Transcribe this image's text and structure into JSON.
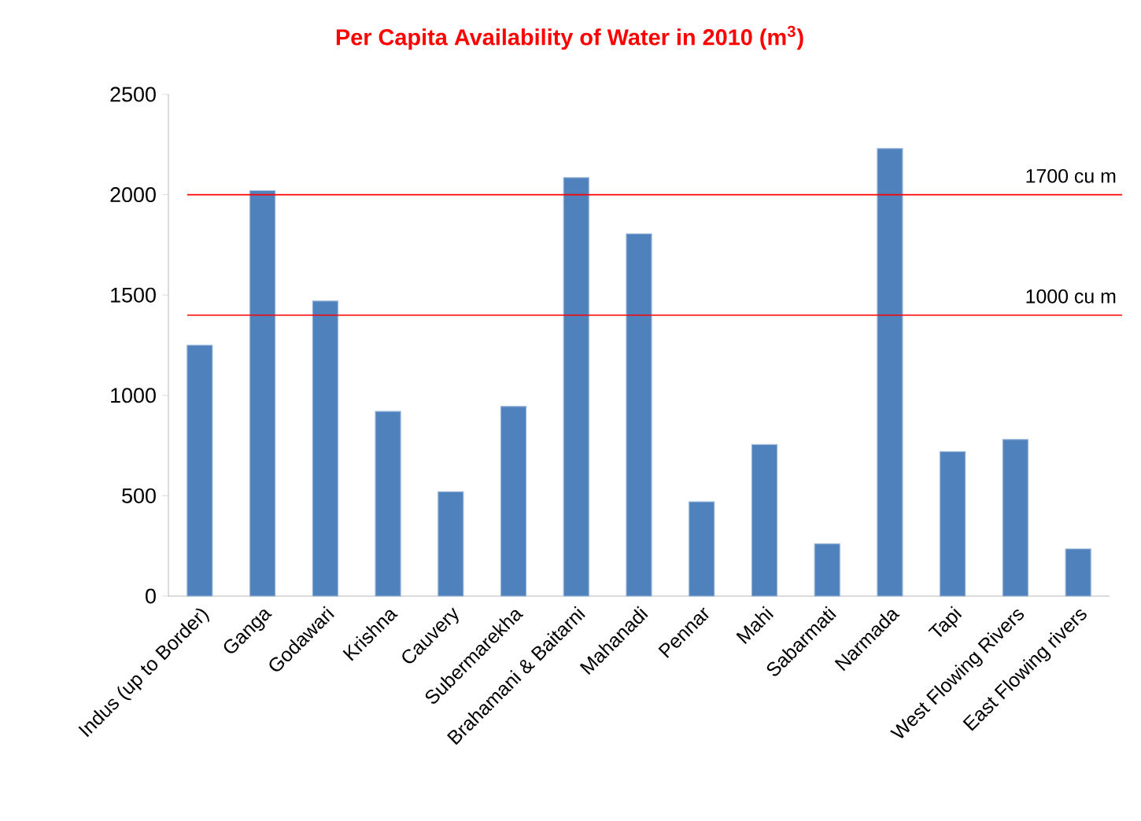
{
  "chart_data": {
    "type": "bar",
    "title": "Per Capita Availability of Water in 2010 (m$^{3}$)",
    "categories": [
      "Indus (up to Border)",
      "Ganga",
      "Godawari",
      "Krishna",
      "Cauvery",
      "Subermarekha",
      "Brahamani & Baitarni",
      "Mahanadi",
      "Pennar",
      "Mahi",
      "Sabarmati",
      "Narmada",
      "Tapi",
      "West Flowing Rivers",
      "East Flowing rivers"
    ],
    "values": [
      1250,
      2020,
      1470,
      920,
      520,
      945,
      2085,
      1805,
      470,
      755,
      260,
      2230,
      720,
      780,
      235
    ],
    "color": "#4f81bd",
    "ylim": [
      0,
      2500
    ],
    "yticks": [
      0,
      500,
      1000,
      1500,
      2000,
      2500
    ],
    "ref_lines": [
      {
        "axis": "y",
        "value": 2000,
        "label": "1700 cu m",
        "color": "#ff0000"
      },
      {
        "axis": "y",
        "value": 1400,
        "label": "1000 cu m",
        "color": "#ff0000"
      }
    ]
  }
}
